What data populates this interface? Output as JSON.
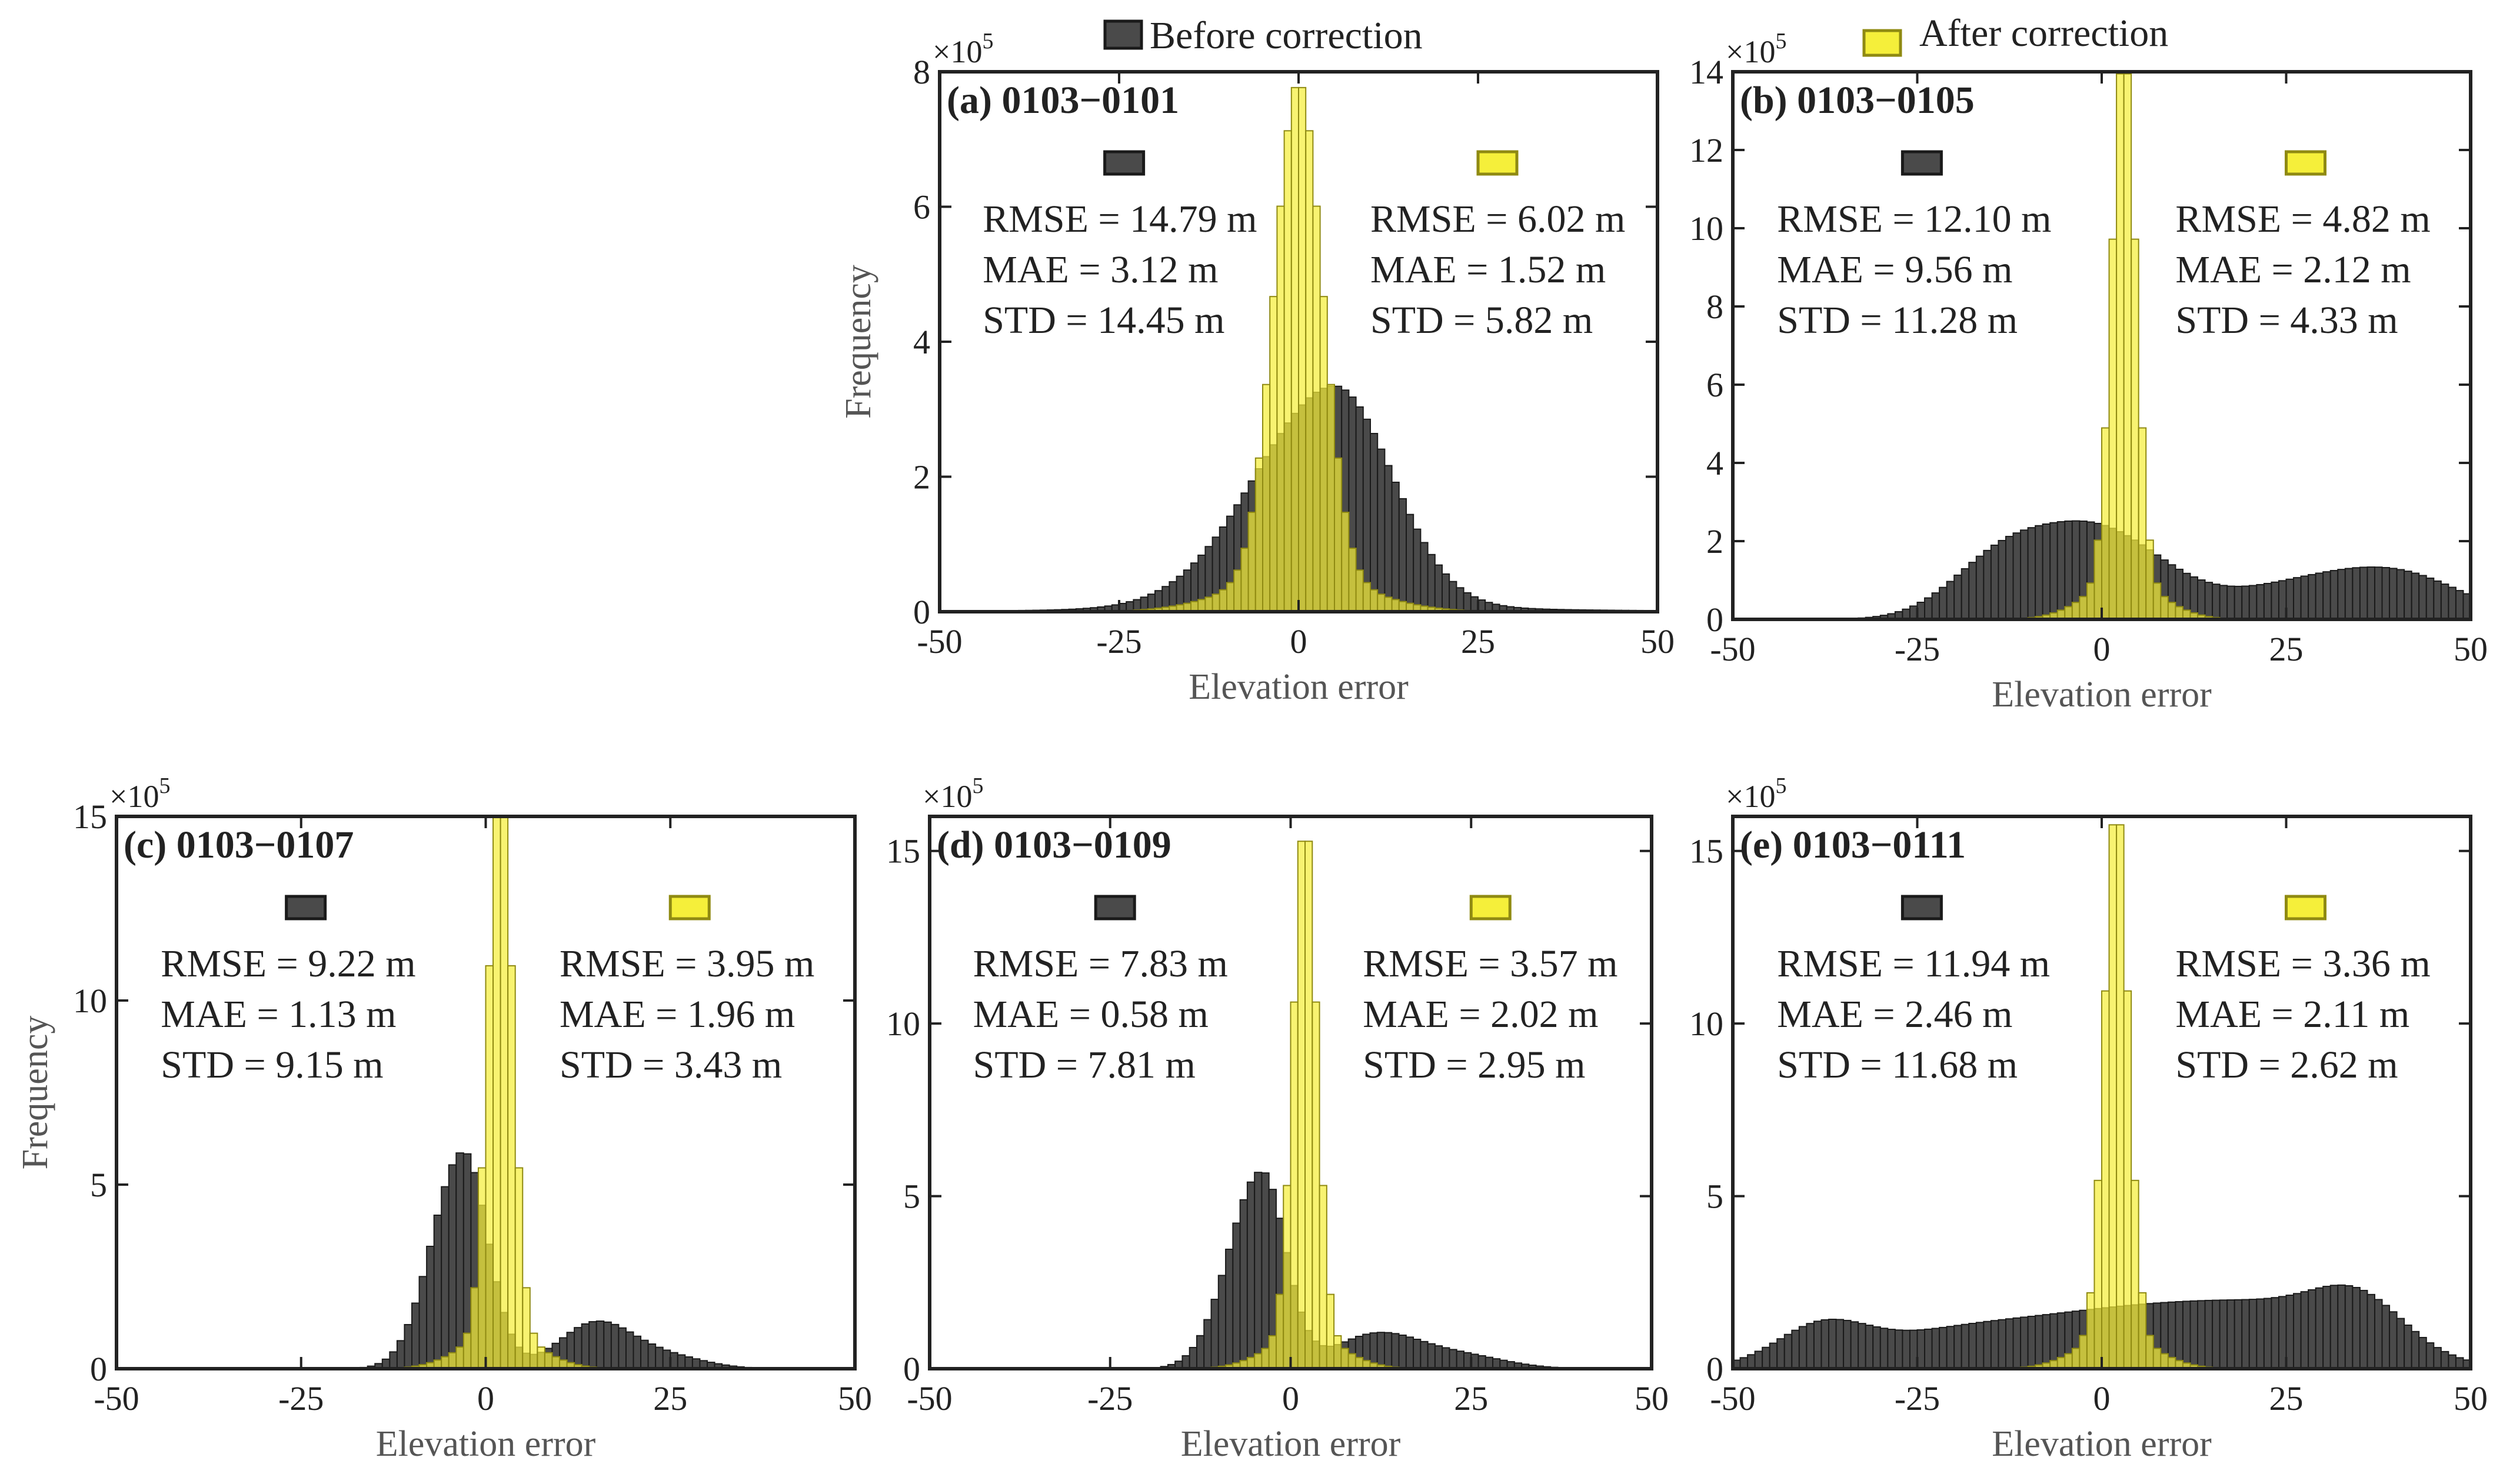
{
  "legend": {
    "before_label": "Before correction",
    "after_label": "After correction"
  },
  "colors": {
    "before_fill": "#4a4a4a",
    "before_edge": "#1a1a1a",
    "after_fill": "#f5ef3a",
    "after_edge": "#8f8a12",
    "overlap_fill": "#b9b514"
  },
  "chart_data": [
    {
      "type": "bar",
      "title": "(a) 0103−0101",
      "xlabel": "Elevation error",
      "ylabel": "Frequency",
      "exponent_label": "×10",
      "exponent_power": "5",
      "xlim": [
        -50,
        50
      ],
      "ylim": [
        0,
        8
      ],
      "xticks": [
        "-50",
        "-25",
        "0",
        "25",
        "50"
      ],
      "yticks": [
        "0",
        "2",
        "4",
        "6",
        "8"
      ],
      "bin_width": 1,
      "before": {
        "center": 5,
        "height": 3.2,
        "sigma_left": 11,
        "sigma_right": 8,
        "tail": 0.15,
        "components": []
      },
      "after": {
        "center": 0,
        "height": 7.3,
        "sigma": 3.3,
        "broad_height": 0.55,
        "broad_sigma": 9
      },
      "stats_before": [
        "RMSE = 14.79 m",
        "MAE = 3.12 m",
        "STD = 14.45 m"
      ],
      "stats_after": [
        "RMSE = 6.02 m",
        "MAE = 1.52 m",
        "STD = 5.82 m"
      ]
    },
    {
      "type": "bar",
      "title": "(b) 0103−0105",
      "xlabel": "Elevation error",
      "ylabel": "",
      "exponent_label": "×10",
      "exponent_power": "5",
      "xlim": [
        -50,
        50
      ],
      "ylim": [
        0,
        14
      ],
      "xticks": [
        "-50",
        "-25",
        "0",
        "25",
        "50"
      ],
      "yticks": [
        "0",
        "2",
        "4",
        "6",
        "8",
        "10",
        "12",
        "14"
      ],
      "bin_width": 1,
      "before": {
        "center": 0,
        "height": 0,
        "sigma_left": 1,
        "sigma_right": 1,
        "tail": 0,
        "components": [
          [
            -13,
            1.65,
            7
          ],
          [
            2,
            1.7,
            8
          ],
          [
            30,
            1.0,
            12
          ],
          [
            42,
            0.6,
            8
          ],
          [
            -3,
            0.5,
            6
          ]
        ]
      },
      "after": {
        "center": 3,
        "height": 13.6,
        "sigma": 1.6,
        "broad_height": 1.0,
        "broad_sigma": 5
      },
      "stats_before": [
        "RMSE = 12.10 m",
        "MAE = 9.56 m",
        "STD = 11.28 m"
      ],
      "stats_after": [
        "RMSE = 4.82 m",
        "MAE = 2.12 m",
        "STD = 4.33 m"
      ]
    },
    {
      "type": "bar",
      "title": "(c) 0103−0107",
      "xlabel": "Elevation error",
      "ylabel": "Frequency",
      "exponent_label": "×10",
      "exponent_power": "5",
      "xlim": [
        -50,
        50
      ],
      "ylim": [
        0,
        15
      ],
      "xticks": [
        "-50",
        "-25",
        "0",
        "25",
        "50"
      ],
      "yticks": [
        "0",
        "5",
        "10",
        "15"
      ],
      "bin_width": 1,
      "before": {
        "center": -3,
        "height": 5.9,
        "sigma_left": 4.2,
        "sigma_right": 3.3,
        "tail": 0,
        "components": [
          [
            15,
            1.25,
            5
          ],
          [
            25,
            0.3,
            5
          ]
        ]
      },
      "after": {
        "center": 2,
        "height": 15.5,
        "sigma": 1.6,
        "broad_height": 1.0,
        "broad_sigma": 5
      },
      "stats_before": [
        "RMSE = 9.22 m",
        "MAE = 1.13 m",
        "STD = 9.15 m"
      ],
      "stats_after": [
        "RMSE = 3.95 m",
        "MAE = 1.96 m",
        "STD = 3.43 m"
      ]
    },
    {
      "type": "bar",
      "title": "(d) 0103−0109",
      "xlabel": "Elevation error",
      "ylabel": "",
      "exponent_label": "×10",
      "exponent_power": "5",
      "xlim": [
        -50,
        50
      ],
      "ylim": [
        0,
        16
      ],
      "xticks": [
        "-50",
        "-25",
        "0",
        "25",
        "50"
      ],
      "yticks": [
        "0",
        "5",
        "10",
        "15"
      ],
      "bin_width": 1,
      "before": {
        "center": -4,
        "height": 5.7,
        "sigma_left": 4.5,
        "sigma_right": 3.3,
        "tail": 0,
        "components": [
          [
            12,
            1.0,
            6
          ],
          [
            24,
            0.35,
            6
          ]
        ]
      },
      "after": {
        "center": 2,
        "height": 15.0,
        "sigma": 1.6,
        "broad_height": 1.0,
        "broad_sigma": 5
      },
      "stats_before": [
        "RMSE = 7.83 m",
        "MAE = 0.58 m",
        "STD = 7.81 m"
      ],
      "stats_after": [
        "RMSE = 3.57 m",
        "MAE = 2.02 m",
        "STD = 2.95 m"
      ]
    },
    {
      "type": "bar",
      "title": "(e) 0103−0111",
      "xlabel": "Elevation error",
      "ylabel": "",
      "exponent_label": "×10",
      "exponent_power": "5",
      "xlim": [
        -50,
        50
      ],
      "ylim": [
        0,
        16
      ],
      "xticks": [
        "-50",
        "-25",
        "0",
        "25",
        "50"
      ],
      "yticks": [
        "0",
        "5",
        "10",
        "15"
      ],
      "bin_width": 1,
      "before": {
        "center": 0,
        "height": 0,
        "sigma_left": 1,
        "sigma_right": 1,
        "tail": 0,
        "components": [
          [
            -38,
            1.0,
            6
          ],
          [
            -18,
            1.1,
            14
          ],
          [
            5,
            1.2,
            12
          ],
          [
            25,
            1.5,
            12
          ],
          [
            35,
            1.2,
            6
          ]
        ]
      },
      "after": {
        "center": 2,
        "height": 15.5,
        "sigma": 1.6,
        "broad_height": 1.0,
        "broad_sigma": 5
      },
      "stats_before": [
        "RMSE = 11.94 m",
        "MAE = 2.46 m",
        "STD = 11.68 m"
      ],
      "stats_after": [
        "RMSE = 3.36 m",
        "MAE = 2.11 m",
        "STD = 2.62 m"
      ]
    }
  ]
}
